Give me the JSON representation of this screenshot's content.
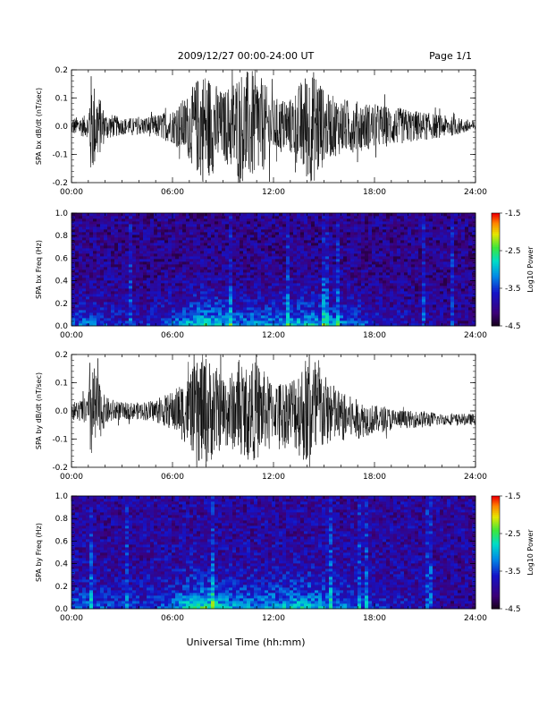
{
  "header": {
    "title": "2009/12/27   00:00-24:00 UT",
    "page": "Page 1/1"
  },
  "xlabel": "Universal Time (hh:mm)",
  "x_tick_labels": [
    "00:00",
    "06:00",
    "12:00",
    "18:00",
    "24:00"
  ],
  "chart_data": [
    {
      "type": "line",
      "ylabel": "SPA bx dB/dt (nT/sec)",
      "xlim": [
        0,
        24
      ],
      "ylim": [
        -0.2,
        0.2
      ],
      "y_tick_labels": [
        "-0.2",
        "-0.1",
        "0.0",
        "0.1",
        "0.2"
      ],
      "x": [
        0,
        1,
        1.1,
        2,
        3,
        4,
        5,
        6,
        7,
        7.7,
        8,
        9,
        10,
        11,
        12,
        13,
        14,
        14.7,
        15,
        16,
        17,
        18,
        19,
        20,
        21,
        22,
        23,
        24
      ],
      "envelope": [
        0.03,
        0.04,
        0.2,
        0.05,
        0.03,
        0.03,
        0.04,
        0.06,
        0.12,
        0.2,
        0.2,
        0.12,
        0.2,
        0.2,
        0.1,
        0.1,
        0.2,
        0.2,
        0.12,
        0.1,
        0.09,
        0.08,
        0.07,
        0.06,
        0.05,
        0.04,
        0.03,
        0.02
      ],
      "offset": [
        0.0,
        0.0,
        0.0,
        0.0,
        0.0,
        0.0,
        0.0,
        0.0,
        0.0,
        0.0,
        0.0,
        0.0,
        0.0,
        0.0,
        0.0,
        0.0,
        0.0,
        0.0,
        0.0,
        0.0,
        0.0,
        0.0,
        0.0,
        0.0,
        0.0,
        0.0,
        0.0,
        0.0
      ],
      "line_color": "#000000"
    },
    {
      "type": "heatmap",
      "ylabel": "SPA bx Freq (Hz)",
      "xlim": [
        0,
        24
      ],
      "ylim": [
        0.0,
        1.0
      ],
      "y_tick_labels": [
        "0.0",
        "0.2",
        "0.4",
        "0.6",
        "0.8",
        "1.0"
      ],
      "colorbar": {
        "label": "Log10 Power",
        "range": [
          -4.5,
          -1.5
        ],
        "tick_labels": [
          "-1.5",
          "-2.5",
          "-3.5",
          "-4.5"
        ]
      },
      "x": [
        0,
        1,
        2,
        3,
        4,
        5,
        6,
        7,
        8,
        9,
        10,
        11,
        12,
        13,
        14,
        15,
        16,
        17,
        18,
        19,
        20,
        21,
        22,
        23,
        24
      ],
      "lowfreq_level": [
        -3.4,
        -3.2,
        -3.4,
        -3.6,
        -3.6,
        -3.5,
        -3.3,
        -2.8,
        -2.6,
        -2.9,
        -3.1,
        -3.0,
        -3.0,
        -2.9,
        -2.8,
        -2.9,
        -3.1,
        -3.3,
        -3.5,
        -3.6,
        -3.7,
        -3.8,
        -3.9,
        -4.0,
        -4.0
      ],
      "background_level": -4.0
    },
    {
      "type": "line",
      "ylabel": "SPA by dB/dt (nT/sec)",
      "xlim": [
        0,
        24
      ],
      "ylim": [
        -0.2,
        0.2
      ],
      "y_tick_labels": [
        "-0.2",
        "-0.1",
        "0.0",
        "0.1",
        "0.2"
      ],
      "x": [
        0,
        1,
        1.1,
        2,
        3,
        4,
        5,
        6,
        7,
        7.7,
        8,
        9,
        10,
        11,
        12,
        13,
        14,
        14.7,
        15,
        16,
        17,
        18,
        19,
        20,
        21,
        22,
        23,
        24
      ],
      "envelope": [
        0.03,
        0.05,
        0.2,
        0.05,
        0.03,
        0.03,
        0.04,
        0.07,
        0.13,
        0.2,
        0.2,
        0.13,
        0.15,
        0.18,
        0.1,
        0.12,
        0.2,
        0.2,
        0.13,
        0.09,
        0.07,
        0.05,
        0.04,
        0.03,
        0.03,
        0.02,
        0.02,
        0.02
      ],
      "offset": [
        0.0,
        0.0,
        0.0,
        0.0,
        0.0,
        0.0,
        0.0,
        0.0,
        0.0,
        0.0,
        0.0,
        0.0,
        0.0,
        0.0,
        0.0,
        0.0,
        0.0,
        0.0,
        0.0,
        -0.02,
        -0.03,
        -0.03,
        -0.03,
        -0.03,
        -0.03,
        -0.03,
        -0.03,
        -0.03
      ],
      "line_color": "#000000"
    },
    {
      "type": "heatmap",
      "ylabel": "SPA by Freq (Hz)",
      "xlim": [
        0,
        24
      ],
      "ylim": [
        0.0,
        1.0
      ],
      "y_tick_labels": [
        "0.0",
        "0.2",
        "0.4",
        "0.6",
        "0.8",
        "1.0"
      ],
      "colorbar": {
        "label": "Log10 Power",
        "range": [
          -4.5,
          -1.5
        ],
        "tick_labels": [
          "-1.5",
          "-2.5",
          "-3.5",
          "-4.5"
        ]
      },
      "x": [
        0,
        1,
        2,
        3,
        4,
        5,
        6,
        7,
        8,
        9,
        10,
        11,
        12,
        13,
        14,
        15,
        16,
        17,
        18,
        19,
        20,
        21,
        22,
        23,
        24
      ],
      "lowfreq_level": [
        -3.3,
        -3.2,
        -3.4,
        -3.5,
        -3.5,
        -3.4,
        -3.2,
        -2.6,
        -2.5,
        -2.8,
        -3.0,
        -3.0,
        -2.9,
        -2.8,
        -2.7,
        -2.9,
        -3.1,
        -3.3,
        -3.5,
        -3.6,
        -3.7,
        -3.8,
        -3.9,
        -4.0,
        -4.0
      ],
      "background_level": -3.9
    }
  ]
}
